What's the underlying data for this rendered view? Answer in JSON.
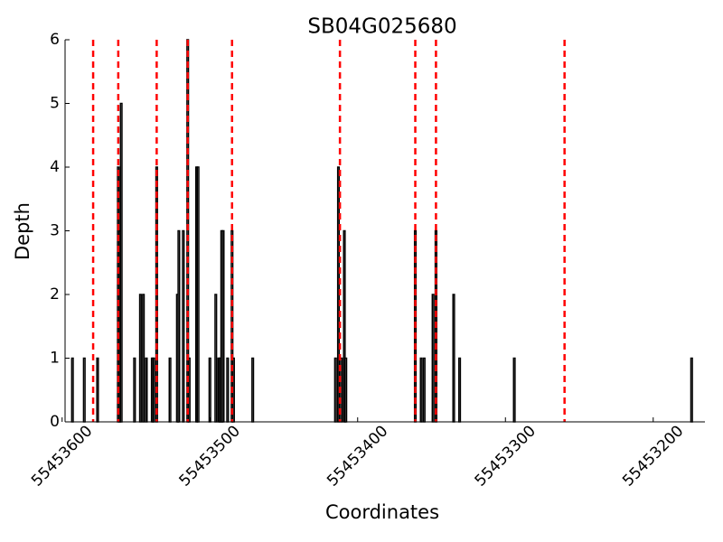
{
  "chart_data": {
    "type": "bar",
    "title": "SB04G025680",
    "x_label": "Coordinates",
    "y_label": "Depth",
    "x": [
      55453593,
      55453585,
      55453576,
      55453562,
      55453561,
      55453560,
      55453551,
      55453547,
      55453545,
      55453543,
      55453539,
      55453538,
      55453536,
      55453527,
      55453522,
      55453521,
      55453518,
      55453515,
      55453514,
      55453509,
      55453508,
      55453500,
      55453496,
      55453494,
      55453493,
      55453492,
      55453491,
      55453488,
      55453485,
      55453484,
      55453471,
      55453415,
      55453413,
      55453411,
      55453409,
      55453408,
      55453361,
      55453357,
      55453355,
      55453349,
      55453347,
      55453335,
      55453331,
      55453294,
      55453174
    ],
    "values": [
      1,
      1,
      1,
      4,
      3,
      5,
      1,
      2,
      2,
      1,
      1,
      1,
      4,
      1,
      2,
      3,
      3,
      6,
      1,
      4,
      4,
      1,
      2,
      1,
      1,
      3,
      3,
      1,
      3,
      1,
      1,
      1,
      4,
      1,
      3,
      1,
      3,
      1,
      1,
      2,
      3,
      2,
      1,
      1,
      1
    ],
    "color": "#000000",
    "vlines": [
      55453579,
      55453562,
      55453536,
      55453515,
      55453485,
      55453412,
      55453361,
      55453347,
      55453260
    ],
    "vline_color": "#ff0000",
    "xlim": [
      55453598,
      55453165
    ],
    "xticks": [
      55453600,
      55453500,
      55453400,
      55453300,
      55453200
    ],
    "ylim": [
      0,
      6
    ],
    "yticks": [
      0,
      1,
      2,
      3,
      4,
      5,
      6
    ]
  }
}
